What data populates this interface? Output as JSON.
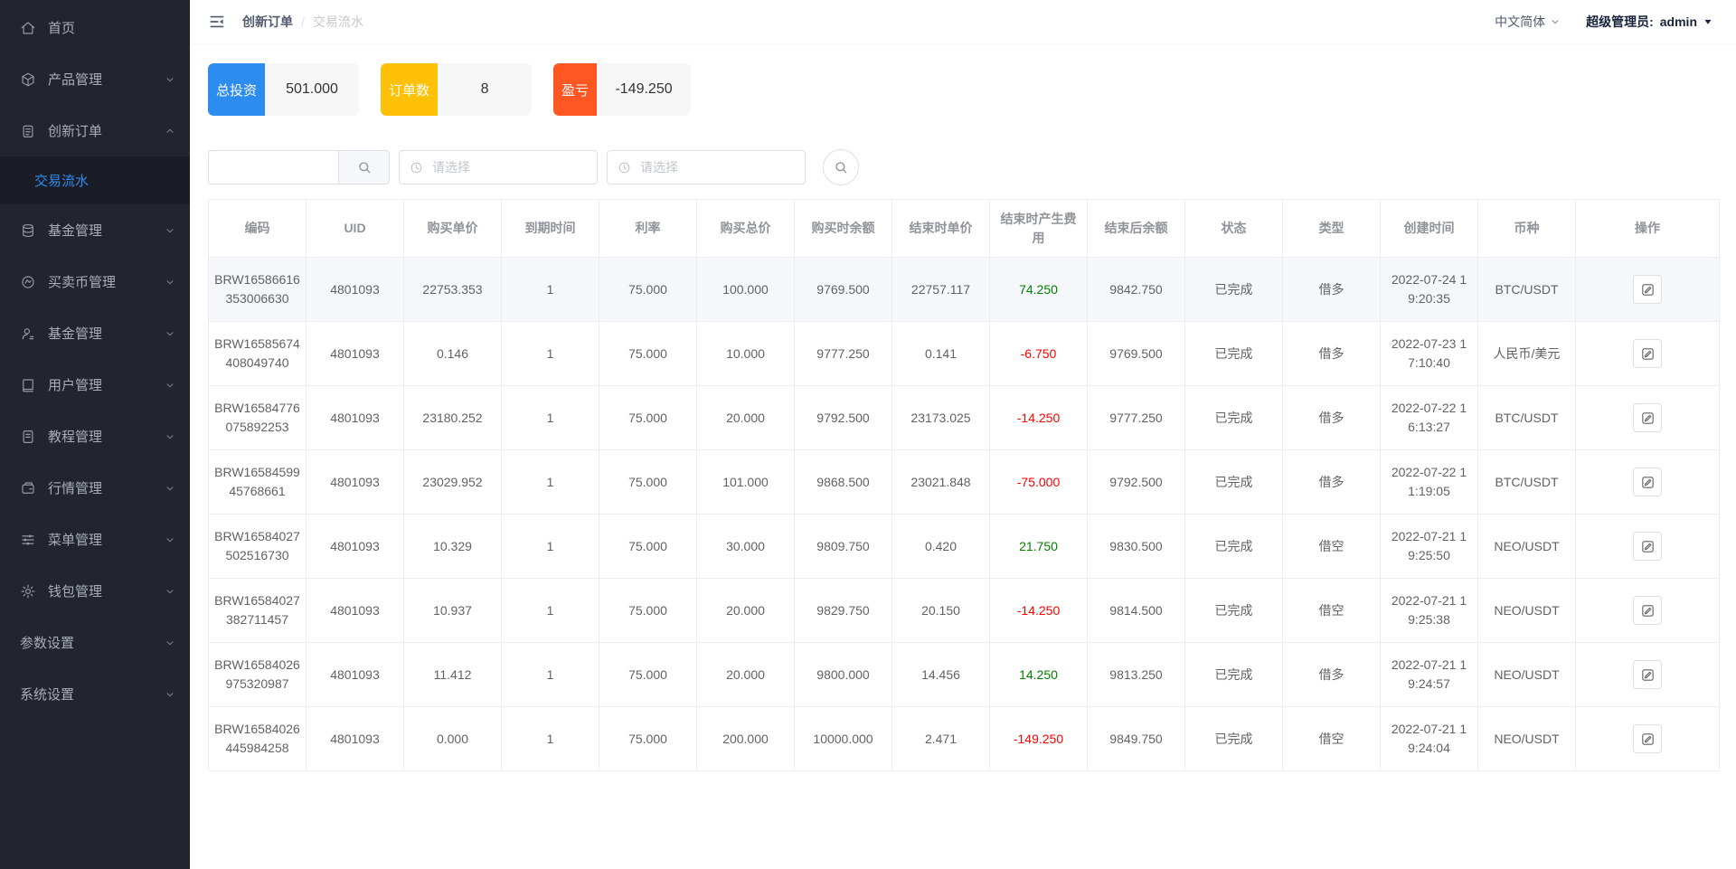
{
  "topbar": {
    "breadcrumb": {
      "parent": "创新订单",
      "separator": "/",
      "current": "交易流水"
    },
    "language": "中文简体",
    "user_role_label": "超级管理员:",
    "username": "admin"
  },
  "sidebar": {
    "items": [
      {
        "label": "首页",
        "icon": "home",
        "expandable": false
      },
      {
        "label": "产品管理",
        "icon": "cube",
        "expandable": true,
        "expanded": false
      },
      {
        "label": "创新订单",
        "icon": "order",
        "expandable": true,
        "expanded": true,
        "children": [
          {
            "label": "交易流水",
            "active": true
          }
        ]
      },
      {
        "label": "基金管理",
        "icon": "coins",
        "expandable": true,
        "expanded": false
      },
      {
        "label": "买卖币管理",
        "icon": "trade",
        "expandable": true,
        "expanded": false
      },
      {
        "label": "基金管理",
        "icon": "user",
        "expandable": true,
        "expanded": false
      },
      {
        "label": "用户管理",
        "icon": "book",
        "expandable": true,
        "expanded": false
      },
      {
        "label": "教程管理",
        "icon": "doc",
        "expandable": true,
        "expanded": false
      },
      {
        "label": "行情管理",
        "icon": "wallet",
        "expandable": true,
        "expanded": false
      },
      {
        "label": "菜单管理",
        "icon": "sliders",
        "expandable": true,
        "expanded": false
      },
      {
        "label": "钱包管理",
        "icon": "gear",
        "expandable": true,
        "expanded": false
      },
      {
        "label": "参数设置",
        "icon": null,
        "expandable": true,
        "expanded": false
      },
      {
        "label": "系统设置",
        "icon": null,
        "expandable": true,
        "expanded": false
      }
    ]
  },
  "stats": [
    {
      "label": "总投资",
      "value": "501.000",
      "color": "#2d8cf0"
    },
    {
      "label": "订单数",
      "value": "8",
      "color": "#ffc107"
    },
    {
      "label": "盈亏",
      "value": "-149.250",
      "color": "#ff5722"
    }
  ],
  "filters": {
    "keyword_value": "",
    "date_start_placeholder": "请选择",
    "date_end_placeholder": "请选择"
  },
  "table": {
    "headers": [
      "编码",
      "UID",
      "购买单价",
      "到期时间",
      "利率",
      "购买总价",
      "购买时余额",
      "结束时单价",
      "结束时产生费用",
      "结束后余额",
      "状态",
      "类型",
      "创建时间",
      "币种",
      "操作"
    ],
    "rows": [
      {
        "code": "BRW16586616\n353006630",
        "uid": "4801093",
        "unit_price": "22753.353",
        "expire": "1",
        "rate": "75.000",
        "total": "100.000",
        "balance_at_buy": "9769.500",
        "end_price": "22757.117",
        "fee": "74.250",
        "balance_after": "9842.750",
        "status": "已完成",
        "type": "借多",
        "created": "2022-07-24 1\n9:20:35",
        "pair": "BTC/USDT",
        "highlighted": true
      },
      {
        "code": "BRW16585674\n408049740",
        "uid": "4801093",
        "unit_price": "0.146",
        "expire": "1",
        "rate": "75.000",
        "total": "10.000",
        "balance_at_buy": "9777.250",
        "end_price": "0.141",
        "fee": "-6.750",
        "balance_after": "9769.500",
        "status": "已完成",
        "type": "借多",
        "created": "2022-07-23 1\n7:10:40",
        "pair": "人民币/美元",
        "highlighted": false
      },
      {
        "code": "BRW16584776\n075892253",
        "uid": "4801093",
        "unit_price": "23180.252",
        "expire": "1",
        "rate": "75.000",
        "total": "20.000",
        "balance_at_buy": "9792.500",
        "end_price": "23173.025",
        "fee": "-14.250",
        "balance_after": "9777.250",
        "status": "已完成",
        "type": "借多",
        "created": "2022-07-22 1\n6:13:27",
        "pair": "BTC/USDT",
        "highlighted": false
      },
      {
        "code": "BRW16584599\n45768661",
        "uid": "4801093",
        "unit_price": "23029.952",
        "expire": "1",
        "rate": "75.000",
        "total": "101.000",
        "balance_at_buy": "9868.500",
        "end_price": "23021.848",
        "fee": "-75.000",
        "balance_after": "9792.500",
        "status": "已完成",
        "type": "借多",
        "created": "2022-07-22 1\n1:19:05",
        "pair": "BTC/USDT",
        "highlighted": false
      },
      {
        "code": "BRW16584027\n502516730",
        "uid": "4801093",
        "unit_price": "10.329",
        "expire": "1",
        "rate": "75.000",
        "total": "30.000",
        "balance_at_buy": "9809.750",
        "end_price": "0.420",
        "fee": "21.750",
        "balance_after": "9830.500",
        "status": "已完成",
        "type": "借空",
        "created": "2022-07-21 1\n9:25:50",
        "pair": "NEO/USDT",
        "highlighted": false
      },
      {
        "code": "BRW16584027\n382711457",
        "uid": "4801093",
        "unit_price": "10.937",
        "expire": "1",
        "rate": "75.000",
        "total": "20.000",
        "balance_at_buy": "9829.750",
        "end_price": "20.150",
        "fee": "-14.250",
        "balance_after": "9814.500",
        "status": "已完成",
        "type": "借空",
        "created": "2022-07-21 1\n9:25:38",
        "pair": "NEO/USDT",
        "highlighted": false
      },
      {
        "code": "BRW16584026\n975320987",
        "uid": "4801093",
        "unit_price": "11.412",
        "expire": "1",
        "rate": "75.000",
        "total": "20.000",
        "balance_at_buy": "9800.000",
        "end_price": "14.456",
        "fee": "14.250",
        "balance_after": "9813.250",
        "status": "已完成",
        "type": "借多",
        "created": "2022-07-21 1\n9:24:57",
        "pair": "NEO/USDT",
        "highlighted": false
      },
      {
        "code": "BRW16584026\n445984258",
        "uid": "4801093",
        "unit_price": "0.000",
        "expire": "1",
        "rate": "75.000",
        "total": "200.000",
        "balance_at_buy": "10000.000",
        "end_price": "2.471",
        "fee": "-149.250",
        "balance_after": "9849.750",
        "status": "已完成",
        "type": "借空",
        "created": "2022-07-21 1\n9:24:04",
        "pair": "NEO/USDT",
        "highlighted": false
      }
    ]
  },
  "colors": {
    "accent_blue": "#2d8cf0",
    "card_yellow": "#ffc107",
    "card_orange": "#ff5722",
    "positive": "#008000",
    "negative": "#ff0000",
    "sidebar_bg": "#22252e",
    "sidebar_sub_bg": "#1a1d25"
  }
}
